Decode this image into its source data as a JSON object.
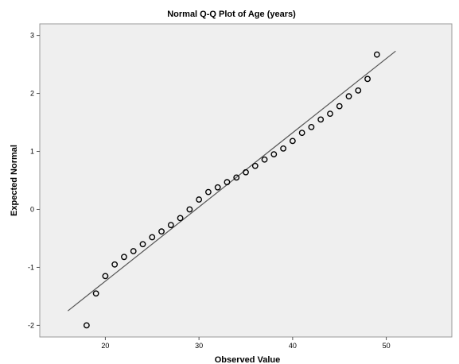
{
  "chart_data": {
    "type": "scatter",
    "title": "Normal Q-Q Plot of Age (years)",
    "xlabel": "Observed Value",
    "ylabel": "Expected Normal",
    "xlim": [
      13,
      57
    ],
    "ylim": [
      -2.2,
      3.2
    ],
    "x_ticks": [
      20,
      30,
      40,
      50
    ],
    "y_ticks": [
      -2,
      -1,
      0,
      1,
      2,
      3
    ],
    "grid": false,
    "background": "#efefef",
    "point_color": "#000000",
    "line_color": "#555555",
    "reference_line": {
      "x": [
        16,
        51
      ],
      "y": [
        -1.75,
        2.73
      ]
    },
    "series": [
      {
        "x": [
          18,
          19,
          20,
          21,
          22,
          23,
          24,
          25,
          26,
          27,
          28,
          29,
          30,
          31,
          32,
          33,
          34,
          35,
          36,
          37,
          38,
          39,
          40,
          41,
          42,
          43,
          44,
          45,
          46,
          47,
          48,
          49
        ],
        "y": [
          -2.0,
          -1.45,
          -1.15,
          -0.95,
          -0.82,
          -0.72,
          -0.6,
          -0.48,
          -0.38,
          -0.27,
          -0.15,
          0.0,
          0.17,
          0.3,
          0.38,
          0.47,
          0.55,
          0.64,
          0.75,
          0.86,
          0.95,
          1.05,
          1.18,
          1.32,
          1.42,
          1.55,
          1.65,
          1.78,
          1.95,
          2.05,
          2.25,
          2.67
        ]
      }
    ]
  }
}
